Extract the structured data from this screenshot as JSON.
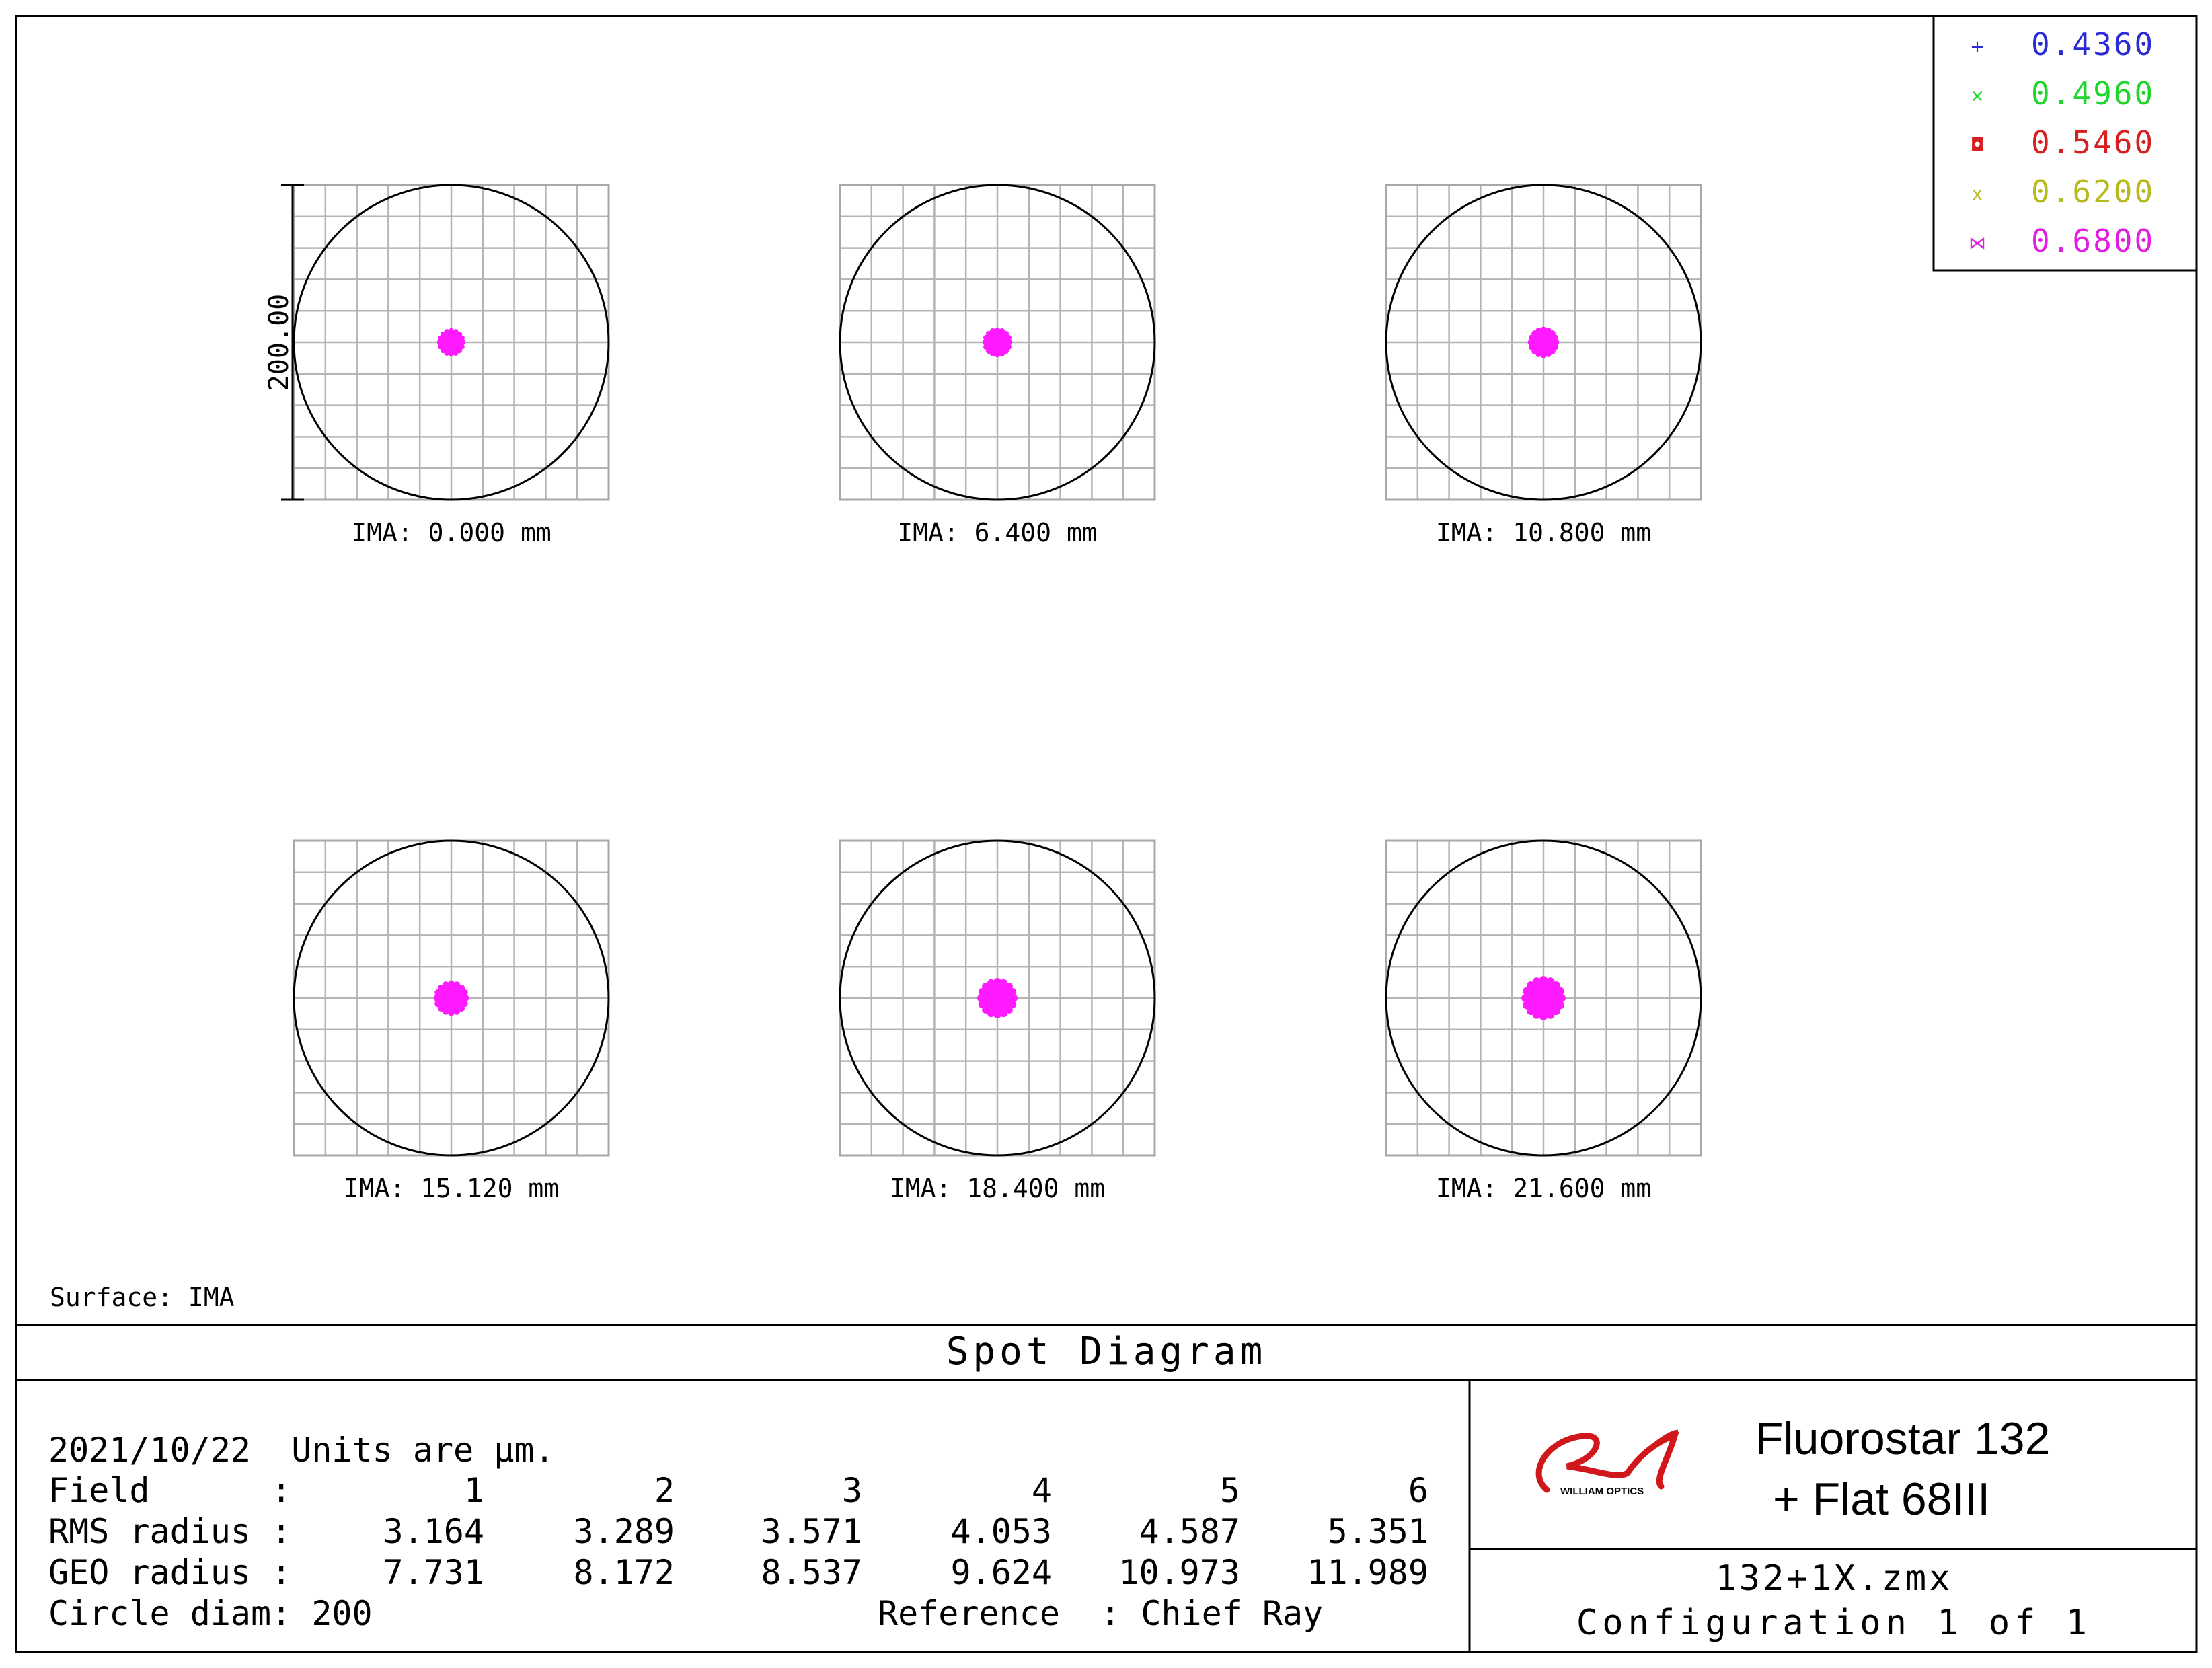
{
  "chart_data": {
    "type": "scatter",
    "title": "Spot Diagram",
    "surface_label": "Surface: IMA",
    "scale_bar": "200.00",
    "legend": {
      "placement": "top-right",
      "entries": [
        {
          "marker": "+",
          "label": "0.4360",
          "color": "#2b2bd6"
        },
        {
          "marker": "×",
          "label": "0.4960",
          "color": "#1fd62b"
        },
        {
          "marker": "◘",
          "label": "0.5460",
          "color": "#d61f1f"
        },
        {
          "marker": "x",
          "label": "0.6200",
          "color": "#b8b81f"
        },
        {
          "marker": "⋈",
          "label": "0.6800",
          "color": "#e01fe0"
        }
      ]
    },
    "spot_color": "#ff1aff",
    "fields": [
      {
        "label": "IMA: 0.000 mm",
        "spot_radius_um": 7.731
      },
      {
        "label": "IMA: 6.400 mm",
        "spot_radius_um": 8.172
      },
      {
        "label": "IMA: 10.800 mm",
        "spot_radius_um": 8.537
      },
      {
        "label": "IMA: 15.120 mm",
        "spot_radius_um": 9.624
      },
      {
        "label": "IMA: 18.400 mm",
        "spot_radius_um": 10.973
      },
      {
        "label": "IMA: 21.600 mm",
        "spot_radius_um": 11.989
      }
    ],
    "circle_diam_um": 200,
    "grid": true
  },
  "info": {
    "date_line": "2021/10/22  Units are µm.",
    "field_label": "Field      :",
    "rms_label": "RMS radius :",
    "geo_label": "GEO radius :",
    "field_values": [
      "1",
      "2",
      "3",
      "4",
      "5",
      "6"
    ],
    "rms_values": [
      "3.164",
      "3.289",
      "3.571",
      "4.053",
      "4.587",
      "5.351"
    ],
    "geo_values": [
      "7.731",
      "8.172",
      "8.537",
      "9.624",
      "10.973",
      "11.989"
    ],
    "circle_line": "Circle diam: 200",
    "reference_line": "Reference  : Chief Ray"
  },
  "title_block": {
    "logo_text": "WILLIAM OPTICS",
    "product_line1": "Fluorostar 132",
    "product_line2": "+ Flat 68III",
    "file_name": "132+1X.zmx",
    "config": "Configuration 1 of 1"
  }
}
